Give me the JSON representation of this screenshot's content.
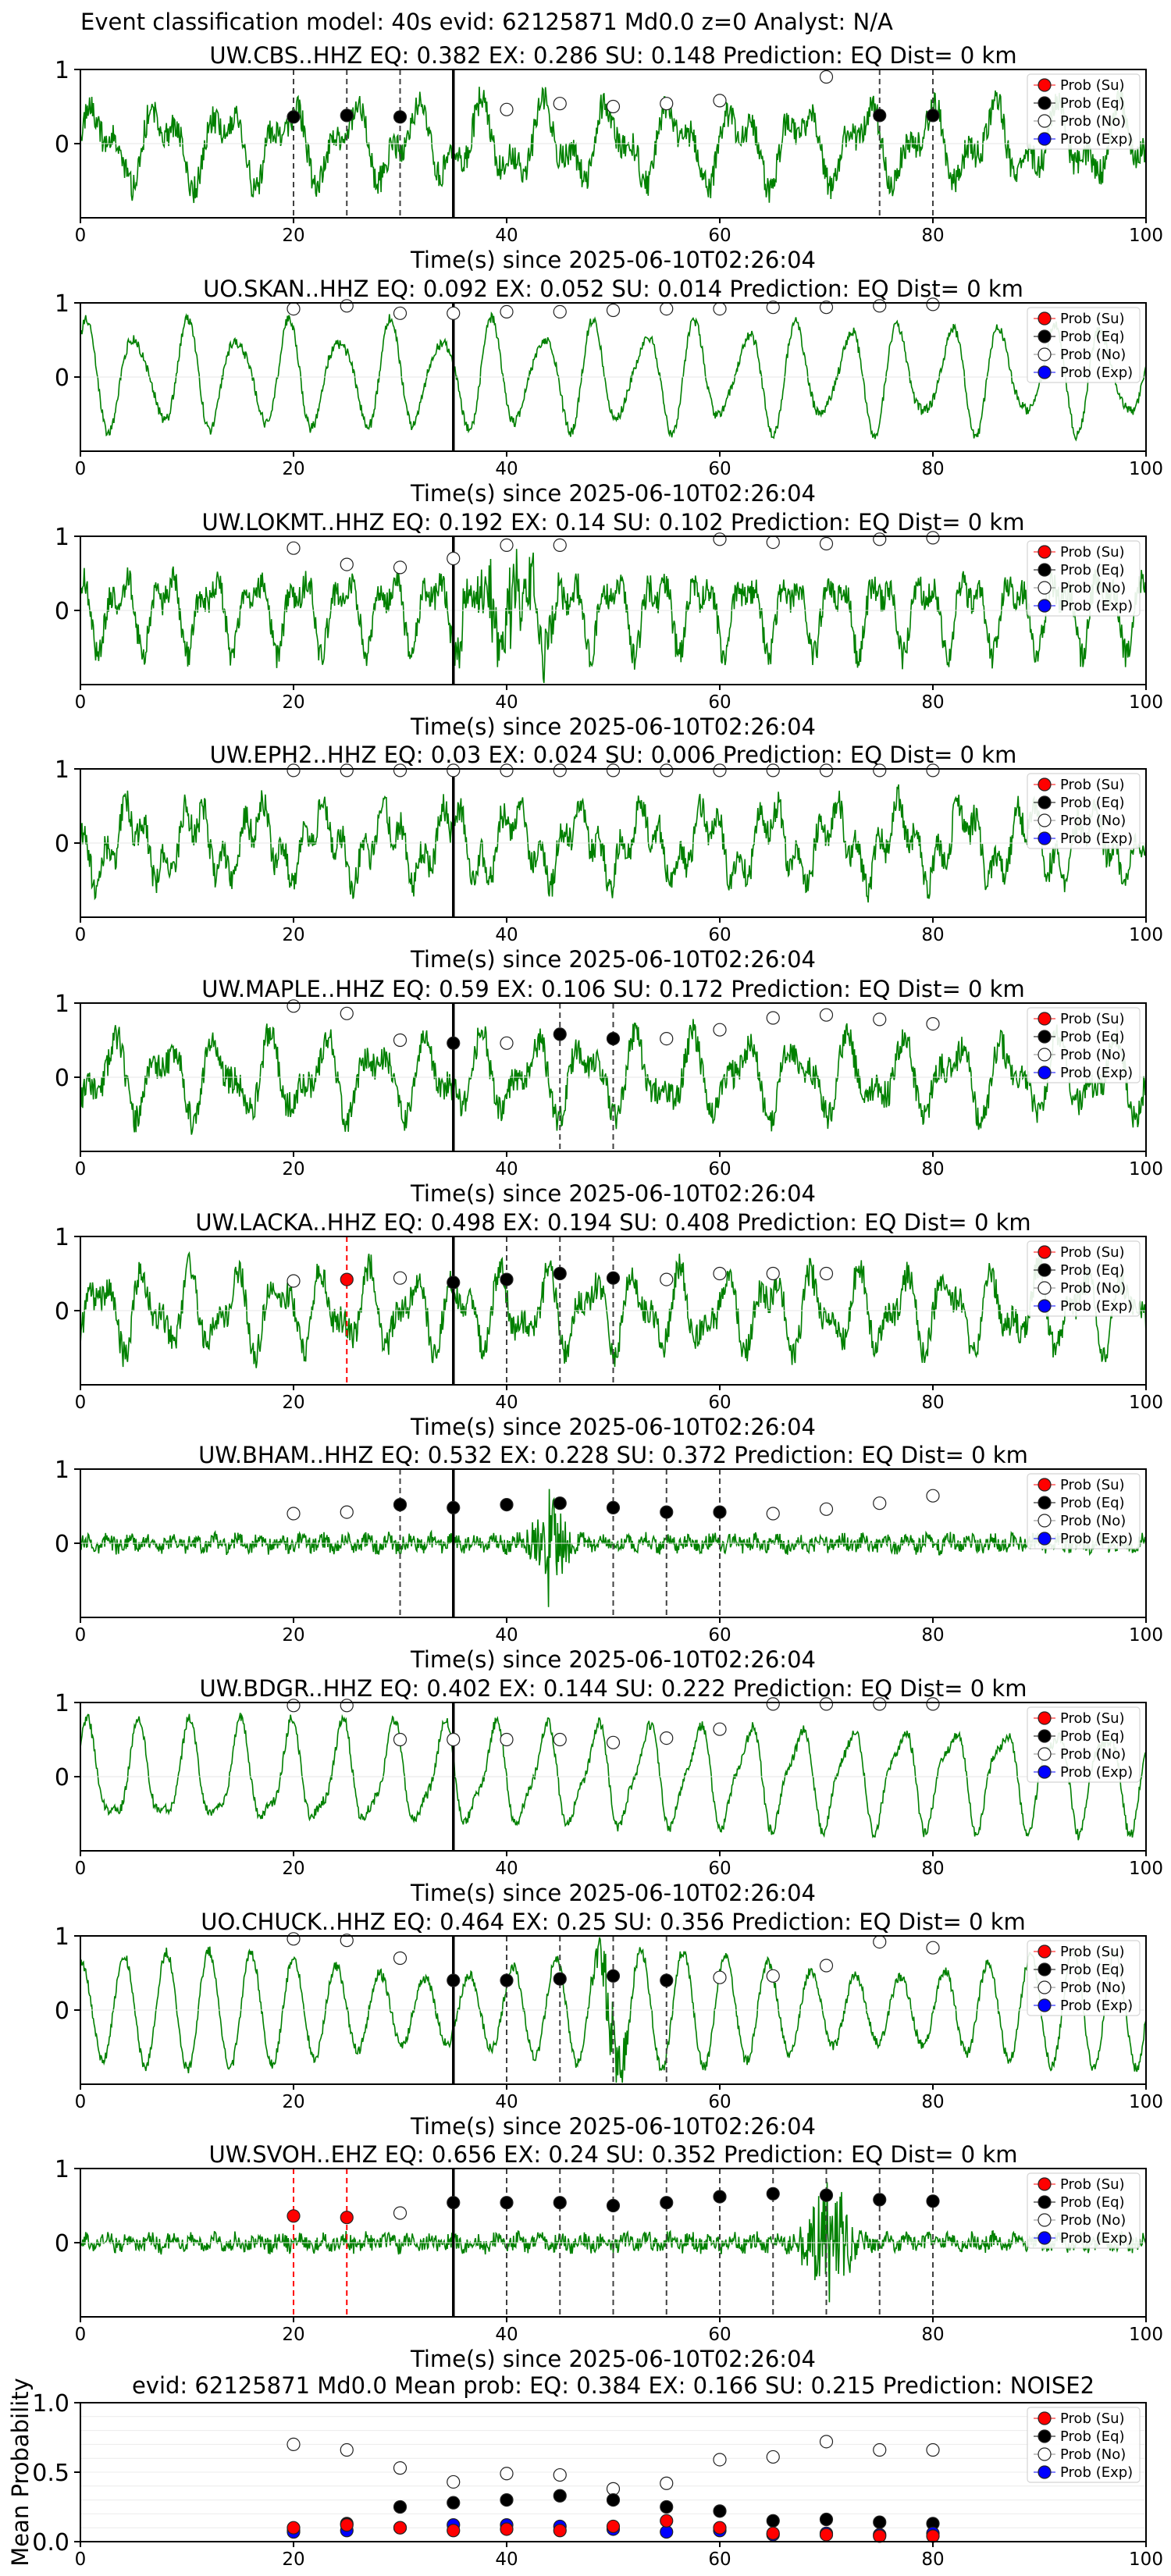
{
  "figure_title": "Event classification model: 40s evid: 62125871 Md0.0 z=0 Analyst: N/A",
  "legend_labels": [
    "Prob (Su)",
    "Prob (Eq)",
    "Prob (No)",
    "Prob (Exp)"
  ],
  "colors": {
    "waveform": "#008000",
    "su": "#ff0000",
    "eq": "#000000",
    "no": "#ffffff",
    "exp": "#0000ff",
    "pick_line": "#000000",
    "eq_marker": "#404040",
    "su_marker": "#ff0000"
  },
  "chart_data": [
    {
      "type": "line",
      "title": "UW.CBS..HHZ   EQ: 0.382  EX: 0.286  SU: 0.148   Prediction: EQ    Dist= 0 km",
      "xlabel": "Time(s) since 2025-06-10T02:26:04",
      "ylabel": "",
      "xlim": [
        0,
        100
      ],
      "ylim": [
        -1,
        1
      ],
      "x_ticks": [
        0,
        20,
        40,
        60,
        80,
        100
      ],
      "y_ticks": [
        0,
        1
      ],
      "waveform": "seismogram (HHZ), mixed frequency",
      "pick_time": 35,
      "eq_marker_times": [
        20,
        25,
        30,
        75,
        80
      ],
      "su_marker_times": [],
      "probabilities": [
        {
          "t": 20,
          "type": "eq",
          "p": 0.36
        },
        {
          "t": 25,
          "type": "eq",
          "p": 0.38
        },
        {
          "t": 30,
          "type": "eq",
          "p": 0.36
        },
        {
          "t": 40,
          "type": "no",
          "p": 0.46
        },
        {
          "t": 45,
          "type": "no",
          "p": 0.54
        },
        {
          "t": 50,
          "type": "no",
          "p": 0.5
        },
        {
          "t": 55,
          "type": "no",
          "p": 0.54
        },
        {
          "t": 60,
          "type": "no",
          "p": 0.58
        },
        {
          "t": 70,
          "type": "no",
          "p": 0.9
        },
        {
          "t": 75,
          "type": "eq",
          "p": 0.38
        },
        {
          "t": 80,
          "type": "eq",
          "p": 0.38
        }
      ]
    },
    {
      "type": "line",
      "title": "UO.SKAN..HHZ   EQ: 0.092  EX: 0.052  SU: 0.014   Prediction: EQ    Dist= 0 km",
      "xlabel": "Time(s) since 2025-06-10T02:26:04",
      "ylabel": "",
      "xlim": [
        0,
        100
      ],
      "ylim": [
        -1,
        1
      ],
      "x_ticks": [
        0,
        20,
        40,
        60,
        80,
        100
      ],
      "y_ticks": [
        0,
        1
      ],
      "waveform": "seismogram (HHZ), regular oscillation",
      "pick_time": 35,
      "eq_marker_times": [],
      "su_marker_times": [],
      "probabilities": [
        {
          "t": 20,
          "type": "no",
          "p": 0.92
        },
        {
          "t": 25,
          "type": "no",
          "p": 0.96
        },
        {
          "t": 30,
          "type": "no",
          "p": 0.86
        },
        {
          "t": 35,
          "type": "no",
          "p": 0.86
        },
        {
          "t": 40,
          "type": "no",
          "p": 0.88
        },
        {
          "t": 45,
          "type": "no",
          "p": 0.88
        },
        {
          "t": 50,
          "type": "no",
          "p": 0.9
        },
        {
          "t": 55,
          "type": "no",
          "p": 0.92
        },
        {
          "t": 60,
          "type": "no",
          "p": 0.92
        },
        {
          "t": 65,
          "type": "no",
          "p": 0.94
        },
        {
          "t": 70,
          "type": "no",
          "p": 0.94
        },
        {
          "t": 75,
          "type": "no",
          "p": 0.96
        },
        {
          "t": 80,
          "type": "no",
          "p": 0.98
        }
      ]
    },
    {
      "type": "line",
      "title": "UW.LOKMT..HHZ   EQ: 0.192  EX: 0.14  SU: 0.102   Prediction: EQ    Dist= 0 km",
      "xlabel": "Time(s) since 2025-06-10T02:26:04",
      "ylabel": "",
      "xlim": [
        0,
        100
      ],
      "ylim": [
        -1,
        1
      ],
      "x_ticks": [
        0,
        20,
        40,
        60,
        80,
        100
      ],
      "y_ticks": [
        0,
        1
      ],
      "waveform": "seismogram (HHZ), burst near 35-45 s",
      "pick_time": 35,
      "eq_marker_times": [],
      "su_marker_times": [],
      "probabilities": [
        {
          "t": 20,
          "type": "no",
          "p": 0.84
        },
        {
          "t": 25,
          "type": "no",
          "p": 0.62
        },
        {
          "t": 30,
          "type": "no",
          "p": 0.58
        },
        {
          "t": 35,
          "type": "no",
          "p": 0.7
        },
        {
          "t": 40,
          "type": "no",
          "p": 0.88
        },
        {
          "t": 45,
          "type": "no",
          "p": 0.88
        },
        {
          "t": 60,
          "type": "no",
          "p": 0.96
        },
        {
          "t": 65,
          "type": "no",
          "p": 0.92
        },
        {
          "t": 70,
          "type": "no",
          "p": 0.9
        },
        {
          "t": 75,
          "type": "no",
          "p": 0.96
        },
        {
          "t": 80,
          "type": "no",
          "p": 0.98
        }
      ]
    },
    {
      "type": "line",
      "title": "UW.EPH2..HHZ   EQ: 0.03  EX: 0.024  SU: 0.006   Prediction: EQ    Dist= 0 km",
      "xlabel": "Time(s) since 2025-06-10T02:26:04",
      "ylabel": "",
      "xlim": [
        0,
        100
      ],
      "ylim": [
        -1,
        1
      ],
      "x_ticks": [
        0,
        20,
        40,
        60,
        80,
        100
      ],
      "y_ticks": [
        0,
        1
      ],
      "waveform": "seismogram (HHZ), noise-like oscillation",
      "pick_time": 35,
      "eq_marker_times": [],
      "su_marker_times": [],
      "probabilities": [
        {
          "t": 20,
          "type": "no",
          "p": 0.98
        },
        {
          "t": 25,
          "type": "no",
          "p": 0.98
        },
        {
          "t": 30,
          "type": "no",
          "p": 0.98
        },
        {
          "t": 35,
          "type": "no",
          "p": 0.98
        },
        {
          "t": 40,
          "type": "no",
          "p": 0.98
        },
        {
          "t": 45,
          "type": "no",
          "p": 0.98
        },
        {
          "t": 50,
          "type": "no",
          "p": 0.98
        },
        {
          "t": 55,
          "type": "no",
          "p": 0.98
        },
        {
          "t": 60,
          "type": "no",
          "p": 0.98
        },
        {
          "t": 65,
          "type": "no",
          "p": 0.98
        },
        {
          "t": 70,
          "type": "no",
          "p": 0.98
        },
        {
          "t": 75,
          "type": "no",
          "p": 0.98
        },
        {
          "t": 80,
          "type": "no",
          "p": 0.98
        }
      ]
    },
    {
      "type": "line",
      "title": "UW.MAPLE..HHZ   EQ: 0.59  EX: 0.106  SU: 0.172   Prediction: EQ    Dist= 0 km",
      "xlabel": "Time(s) since 2025-06-10T02:26:04",
      "ylabel": "",
      "xlim": [
        0,
        100
      ],
      "ylim": [
        -1,
        1
      ],
      "x_ticks": [
        0,
        20,
        40,
        60,
        80,
        100
      ],
      "y_ticks": [
        0,
        1
      ],
      "waveform": "seismogram (HHZ), mixed frequency",
      "pick_time": 35,
      "eq_marker_times": [
        45,
        50
      ],
      "su_marker_times": [],
      "probabilities": [
        {
          "t": 20,
          "type": "no",
          "p": 0.96
        },
        {
          "t": 25,
          "type": "no",
          "p": 0.86
        },
        {
          "t": 30,
          "type": "no",
          "p": 0.5
        },
        {
          "t": 35,
          "type": "eq",
          "p": 0.46
        },
        {
          "t": 40,
          "type": "no",
          "p": 0.46
        },
        {
          "t": 45,
          "type": "eq",
          "p": 0.58
        },
        {
          "t": 50,
          "type": "eq",
          "p": 0.52
        },
        {
          "t": 55,
          "type": "no",
          "p": 0.52
        },
        {
          "t": 60,
          "type": "no",
          "p": 0.64
        },
        {
          "t": 65,
          "type": "no",
          "p": 0.8
        },
        {
          "t": 70,
          "type": "no",
          "p": 0.84
        },
        {
          "t": 75,
          "type": "no",
          "p": 0.78
        },
        {
          "t": 80,
          "type": "no",
          "p": 0.72
        }
      ]
    },
    {
      "type": "line",
      "title": "UW.LACKA..HHZ   EQ: 0.498  EX: 0.194  SU: 0.408   Prediction: EQ    Dist= 0 km",
      "xlabel": "Time(s) since 2025-06-10T02:26:04",
      "ylabel": "",
      "xlim": [
        0,
        100
      ],
      "ylim": [
        -1,
        1
      ],
      "x_ticks": [
        0,
        20,
        40,
        60,
        80,
        100
      ],
      "y_ticks": [
        0,
        1
      ],
      "waveform": "seismogram (HHZ), mixed frequency",
      "pick_time": 35,
      "eq_marker_times": [
        40,
        45,
        50
      ],
      "su_marker_times": [
        25
      ],
      "probabilities": [
        {
          "t": 20,
          "type": "no",
          "p": 0.4
        },
        {
          "t": 25,
          "type": "su",
          "p": 0.42
        },
        {
          "t": 30,
          "type": "no",
          "p": 0.44
        },
        {
          "t": 35,
          "type": "eq",
          "p": 0.38
        },
        {
          "t": 40,
          "type": "eq",
          "p": 0.42
        },
        {
          "t": 45,
          "type": "eq",
          "p": 0.5
        },
        {
          "t": 50,
          "type": "eq",
          "p": 0.44
        },
        {
          "t": 55,
          "type": "no",
          "p": 0.42
        },
        {
          "t": 60,
          "type": "no",
          "p": 0.5
        },
        {
          "t": 65,
          "type": "no",
          "p": 0.5
        },
        {
          "t": 70,
          "type": "no",
          "p": 0.5
        }
      ]
    },
    {
      "type": "line",
      "title": "UW.BHAM..HHZ   EQ: 0.532  EX: 0.228  SU: 0.372   Prediction: EQ    Dist= 0 km",
      "xlabel": "Time(s) since 2025-06-10T02:26:04",
      "ylabel": "",
      "xlim": [
        0,
        100
      ],
      "ylim": [
        -1,
        1
      ],
      "x_ticks": [
        0,
        20,
        40,
        60,
        80,
        100
      ],
      "y_ticks": [
        0,
        1
      ],
      "waveform": "seismogram (HHZ), low noise with burst near 44 s",
      "pick_time": 35,
      "eq_marker_times": [
        30,
        50,
        55,
        60
      ],
      "su_marker_times": [],
      "probabilities": [
        {
          "t": 20,
          "type": "no",
          "p": 0.4
        },
        {
          "t": 25,
          "type": "no",
          "p": 0.42
        },
        {
          "t": 30,
          "type": "eq",
          "p": 0.52
        },
        {
          "t": 35,
          "type": "eq",
          "p": 0.48
        },
        {
          "t": 40,
          "type": "eq",
          "p": 0.52
        },
        {
          "t": 45,
          "type": "eq",
          "p": 0.54
        },
        {
          "t": 50,
          "type": "eq",
          "p": 0.48
        },
        {
          "t": 55,
          "type": "eq",
          "p": 0.42
        },
        {
          "t": 60,
          "type": "eq",
          "p": 0.42
        },
        {
          "t": 65,
          "type": "no",
          "p": 0.4
        },
        {
          "t": 70,
          "type": "no",
          "p": 0.46
        },
        {
          "t": 75,
          "type": "no",
          "p": 0.54
        },
        {
          "t": 80,
          "type": "no",
          "p": 0.64
        }
      ]
    },
    {
      "type": "line",
      "title": "UW.BDGR..HHZ   EQ: 0.402  EX: 0.144  SU: 0.222   Prediction: EQ    Dist= 0 km",
      "xlabel": "Time(s) since 2025-06-10T02:26:04",
      "ylabel": "",
      "xlim": [
        0,
        100
      ],
      "ylim": [
        -1,
        1
      ],
      "x_ticks": [
        0,
        20,
        40,
        60,
        80,
        100
      ],
      "y_ticks": [
        0,
        1
      ],
      "waveform": "seismogram (HHZ), regular oscillation",
      "pick_time": 35,
      "eq_marker_times": [],
      "su_marker_times": [],
      "probabilities": [
        {
          "t": 20,
          "type": "no",
          "p": 0.96
        },
        {
          "t": 25,
          "type": "no",
          "p": 0.96
        },
        {
          "t": 30,
          "type": "no",
          "p": 0.5
        },
        {
          "t": 35,
          "type": "no",
          "p": 0.5
        },
        {
          "t": 40,
          "type": "no",
          "p": 0.5
        },
        {
          "t": 45,
          "type": "no",
          "p": 0.5
        },
        {
          "t": 50,
          "type": "no",
          "p": 0.46
        },
        {
          "t": 55,
          "type": "no",
          "p": 0.52
        },
        {
          "t": 60,
          "type": "no",
          "p": 0.64
        },
        {
          "t": 65,
          "type": "no",
          "p": 0.98
        },
        {
          "t": 70,
          "type": "no",
          "p": 0.98
        },
        {
          "t": 75,
          "type": "no",
          "p": 0.98
        },
        {
          "t": 80,
          "type": "no",
          "p": 0.98
        }
      ]
    },
    {
      "type": "line",
      "title": "UO.CHUCK..HHZ   EQ: 0.464  EX: 0.25  SU: 0.356   Prediction: EQ    Dist= 0 km",
      "xlabel": "Time(s) since 2025-06-10T02:26:04",
      "ylabel": "",
      "xlim": [
        0,
        100
      ],
      "ylim": [
        -1,
        1
      ],
      "x_ticks": [
        0,
        20,
        40,
        60,
        80,
        100
      ],
      "y_ticks": [
        0,
        1
      ],
      "waveform": "seismogram (HHZ), regular oscillation with burst near 50 s",
      "pick_time": 35,
      "eq_marker_times": [
        40,
        45,
        50,
        55
      ],
      "su_marker_times": [],
      "probabilities": [
        {
          "t": 20,
          "type": "no",
          "p": 0.96
        },
        {
          "t": 25,
          "type": "no",
          "p": 0.94
        },
        {
          "t": 30,
          "type": "no",
          "p": 0.7
        },
        {
          "t": 35,
          "type": "eq",
          "p": 0.4
        },
        {
          "t": 40,
          "type": "eq",
          "p": 0.4
        },
        {
          "t": 45,
          "type": "eq",
          "p": 0.42
        },
        {
          "t": 50,
          "type": "eq",
          "p": 0.46
        },
        {
          "t": 55,
          "type": "eq",
          "p": 0.4
        },
        {
          "t": 60,
          "type": "no",
          "p": 0.44
        },
        {
          "t": 65,
          "type": "no",
          "p": 0.46
        },
        {
          "t": 70,
          "type": "no",
          "p": 0.6
        },
        {
          "t": 75,
          "type": "no",
          "p": 0.92
        },
        {
          "t": 80,
          "type": "no",
          "p": 0.84
        }
      ]
    },
    {
      "type": "line",
      "title": "UW.SVOH..EHZ   EQ: 0.656  EX: 0.24  SU: 0.352   Prediction: EQ    Dist= 0 km",
      "xlabel": "Time(s) since 2025-06-10T02:26:04",
      "ylabel": "",
      "xlim": [
        0,
        100
      ],
      "ylim": [
        -1,
        1
      ],
      "x_ticks": [
        0,
        20,
        40,
        60,
        80,
        100
      ],
      "y_ticks": [
        0,
        1
      ],
      "waveform": "seismogram (EHZ), low noise with spikes near 68-72 s",
      "pick_time": 35,
      "eq_marker_times": [
        40,
        45,
        50,
        55,
        60,
        65,
        70,
        75,
        80
      ],
      "su_marker_times": [
        20,
        25
      ],
      "probabilities": [
        {
          "t": 20,
          "type": "su",
          "p": 0.36
        },
        {
          "t": 25,
          "type": "su",
          "p": 0.34
        },
        {
          "t": 30,
          "type": "no",
          "p": 0.4
        },
        {
          "t": 35,
          "type": "eq",
          "p": 0.54
        },
        {
          "t": 40,
          "type": "eq",
          "p": 0.54
        },
        {
          "t": 45,
          "type": "eq",
          "p": 0.54
        },
        {
          "t": 50,
          "type": "eq",
          "p": 0.5
        },
        {
          "t": 55,
          "type": "eq",
          "p": 0.54
        },
        {
          "t": 60,
          "type": "eq",
          "p": 0.62
        },
        {
          "t": 65,
          "type": "eq",
          "p": 0.66
        },
        {
          "t": 70,
          "type": "eq",
          "p": 0.64
        },
        {
          "t": 75,
          "type": "eq",
          "p": 0.58
        },
        {
          "t": 80,
          "type": "eq",
          "p": 0.56
        }
      ]
    },
    {
      "type": "scatter",
      "title": "evid: 62125871  Md0.0   Mean prob:   EQ: 0.384  EX: 0.166  SU: 0.215   Prediction: NOISE2",
      "xlabel": "",
      "ylabel": "Mean Probability",
      "xlim": [
        0,
        100
      ],
      "ylim": [
        0,
        1
      ],
      "x_ticks": [
        0,
        20,
        40,
        60,
        80,
        100
      ],
      "y_ticks": [
        0.0,
        0.5,
        1.0
      ],
      "grid": "horizontal",
      "legend": "top-right",
      "x": [
        20,
        25,
        30,
        35,
        40,
        45,
        50,
        55,
        60,
        65,
        70,
        75,
        80
      ],
      "series": [
        {
          "name": "Prob (Su)",
          "values": [
            0.1,
            0.12,
            0.1,
            0.08,
            0.09,
            0.08,
            0.11,
            0.15,
            0.1,
            0.06,
            0.05,
            0.04,
            0.04
          ]
        },
        {
          "name": "Prob (Eq)",
          "values": [
            0.08,
            0.13,
            0.25,
            0.28,
            0.3,
            0.33,
            0.3,
            0.25,
            0.22,
            0.15,
            0.16,
            0.14,
            0.13
          ]
        },
        {
          "name": "Prob (No)",
          "values": [
            0.7,
            0.66,
            0.53,
            0.43,
            0.49,
            0.48,
            0.38,
            0.42,
            0.59,
            0.61,
            0.72,
            0.66,
            0.66
          ]
        },
        {
          "name": "Prob (Exp)",
          "values": [
            0.07,
            0.08,
            0.1,
            0.12,
            0.12,
            0.11,
            0.09,
            0.07,
            0.08,
            0.05,
            0.06,
            0.05,
            0.06
          ]
        }
      ]
    }
  ]
}
